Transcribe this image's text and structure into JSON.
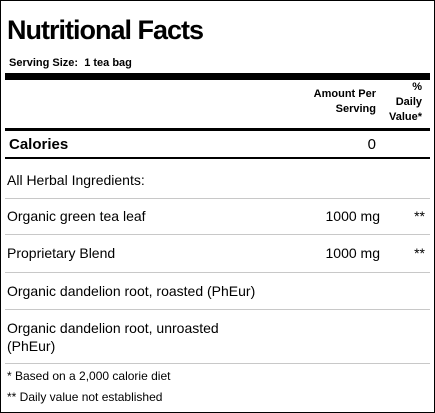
{
  "header": {
    "title": "Nutritional Facts",
    "serving_size_label": "Serving Size:",
    "serving_size": "1 tea bag"
  },
  "table": {
    "columns": [
      "Amount Per Serving",
      "% Daily Value*"
    ],
    "calories": {
      "label": "Calories",
      "value": 0
    },
    "section": "All Herbal Ingredients:",
    "rows": [
      {
        "name": "Organic green tea leaf",
        "amount": "1000 mg",
        "daily_value": "**"
      },
      {
        "name": "Proprietary Blend",
        "amount": "1000 mg",
        "daily_value": "**"
      },
      {
        "name": "Organic dandelion root, roasted (PhEur)"
      },
      {
        "name": "Organic dandelion root, unroasted (PhEur)"
      }
    ]
  },
  "footnotes": [
    "* Based on a 2,000 calorie diet",
    "** Daily value not established"
  ]
}
